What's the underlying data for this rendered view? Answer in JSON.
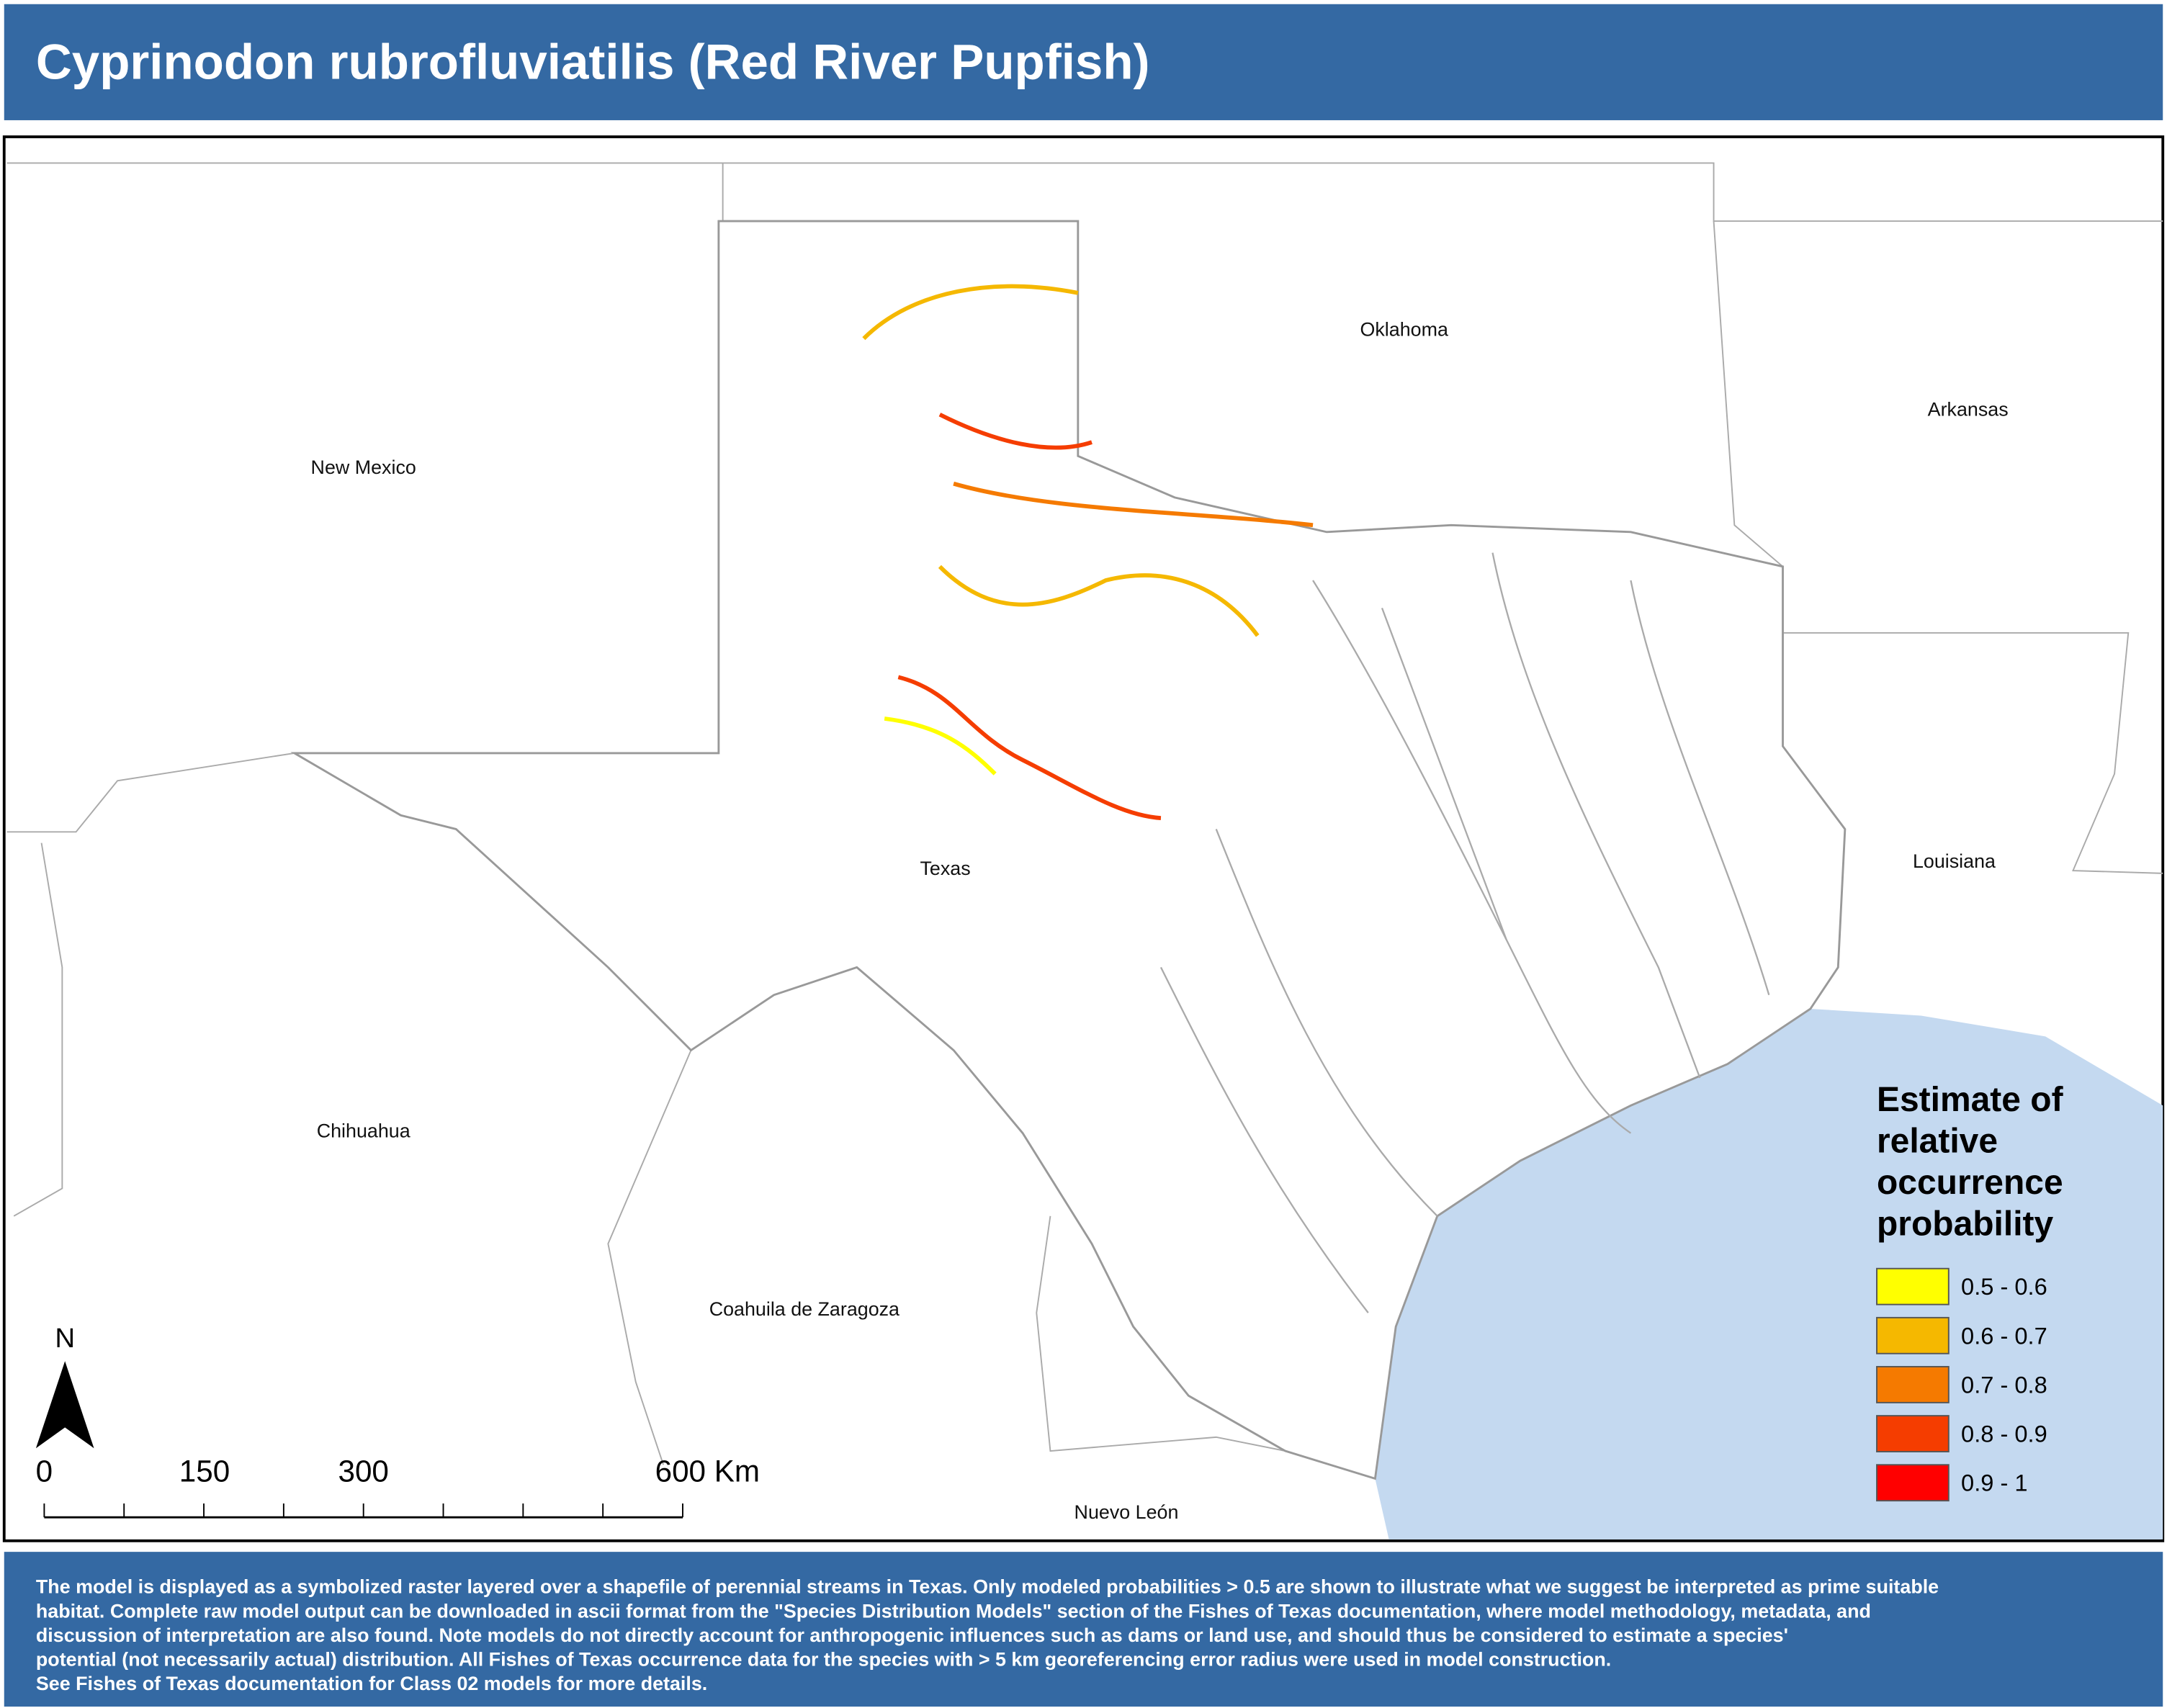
{
  "header": {
    "title": "Cyprinodon rubrofluviatilis (Red River Pupfish)"
  },
  "map": {
    "labels": [
      "Oklahoma",
      "Arkansas",
      "New Mexico",
      "Louisiana",
      "Texas",
      "Chihuahua",
      "Coahuila de Zaragoza",
      "Nuevo León"
    ],
    "north": "N",
    "scale": [
      "0",
      "150",
      "300",
      "600 Km"
    ]
  },
  "legend": {
    "title": [
      "Estimate of",
      "relative",
      "occurrence",
      "probability"
    ],
    "items": [
      {
        "label": "0.5 - 0.6",
        "color": "#ffff00"
      },
      {
        "label": "0.6 - 0.7",
        "color": "#f5b800"
      },
      {
        "label": "0.7 - 0.8",
        "color": "#f57a00"
      },
      {
        "label": "0.8 - 0.9",
        "color": "#f53d00"
      },
      {
        "label": "0.9 - 1",
        "color": "#ff0000"
      }
    ]
  },
  "footer": {
    "lines": [
      "The model is displayed as a symbolized raster layered over a shapefile of perennial streams in Texas. Only modeled probabilities > 0.5 are shown to illustrate what we suggest be interpreted as prime suitable",
      "habitat. Complete raw model output can be downloaded in ascii format from the \"Species Distribution Models\" section of the Fishes of Texas documentation, where model methodology, metadata, and",
      " discussion of interpretation are also found. Note models do not directly account for anthropogenic influences such as dams or land use, and should thus be considered to estimate a species'",
      "potential (not necessarily actual) distribution. All Fishes of Texas occurrence data for the species with > 5 km georeferencing error radius were used in model construction.",
      "See Fishes of Texas documentation for Class 02 models for more details."
    ]
  }
}
